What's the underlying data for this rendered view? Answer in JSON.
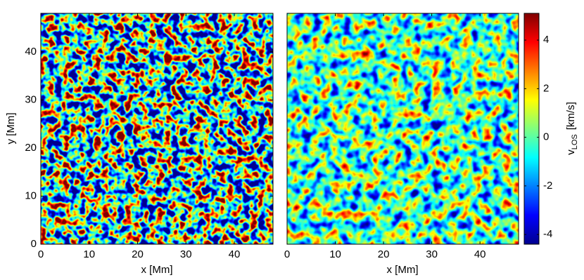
{
  "chart_data": [
    {
      "type": "heatmap",
      "xlabel": "x [Mm]",
      "ylabel": "y [Mm]",
      "xlim": [
        0,
        48
      ],
      "ylim": [
        0,
        48
      ],
      "xticks": [
        0,
        10,
        20,
        30,
        40
      ],
      "yticks": [
        0,
        10,
        20,
        30,
        40
      ]
    },
    {
      "type": "heatmap",
      "xlabel": "x [Mm]",
      "xlim": [
        0,
        48
      ],
      "ylim": [
        0,
        48
      ],
      "xticks": [
        0,
        10,
        20,
        30,
        40
      ],
      "colorbar": {
        "label": {
          "main": "v",
          "sub": "LOS",
          "unit": "[km/s]"
        },
        "lim": [
          -4.4,
          5.1
        ],
        "ticks": [
          -4,
          -2,
          0,
          2,
          4
        ]
      }
    }
  ]
}
